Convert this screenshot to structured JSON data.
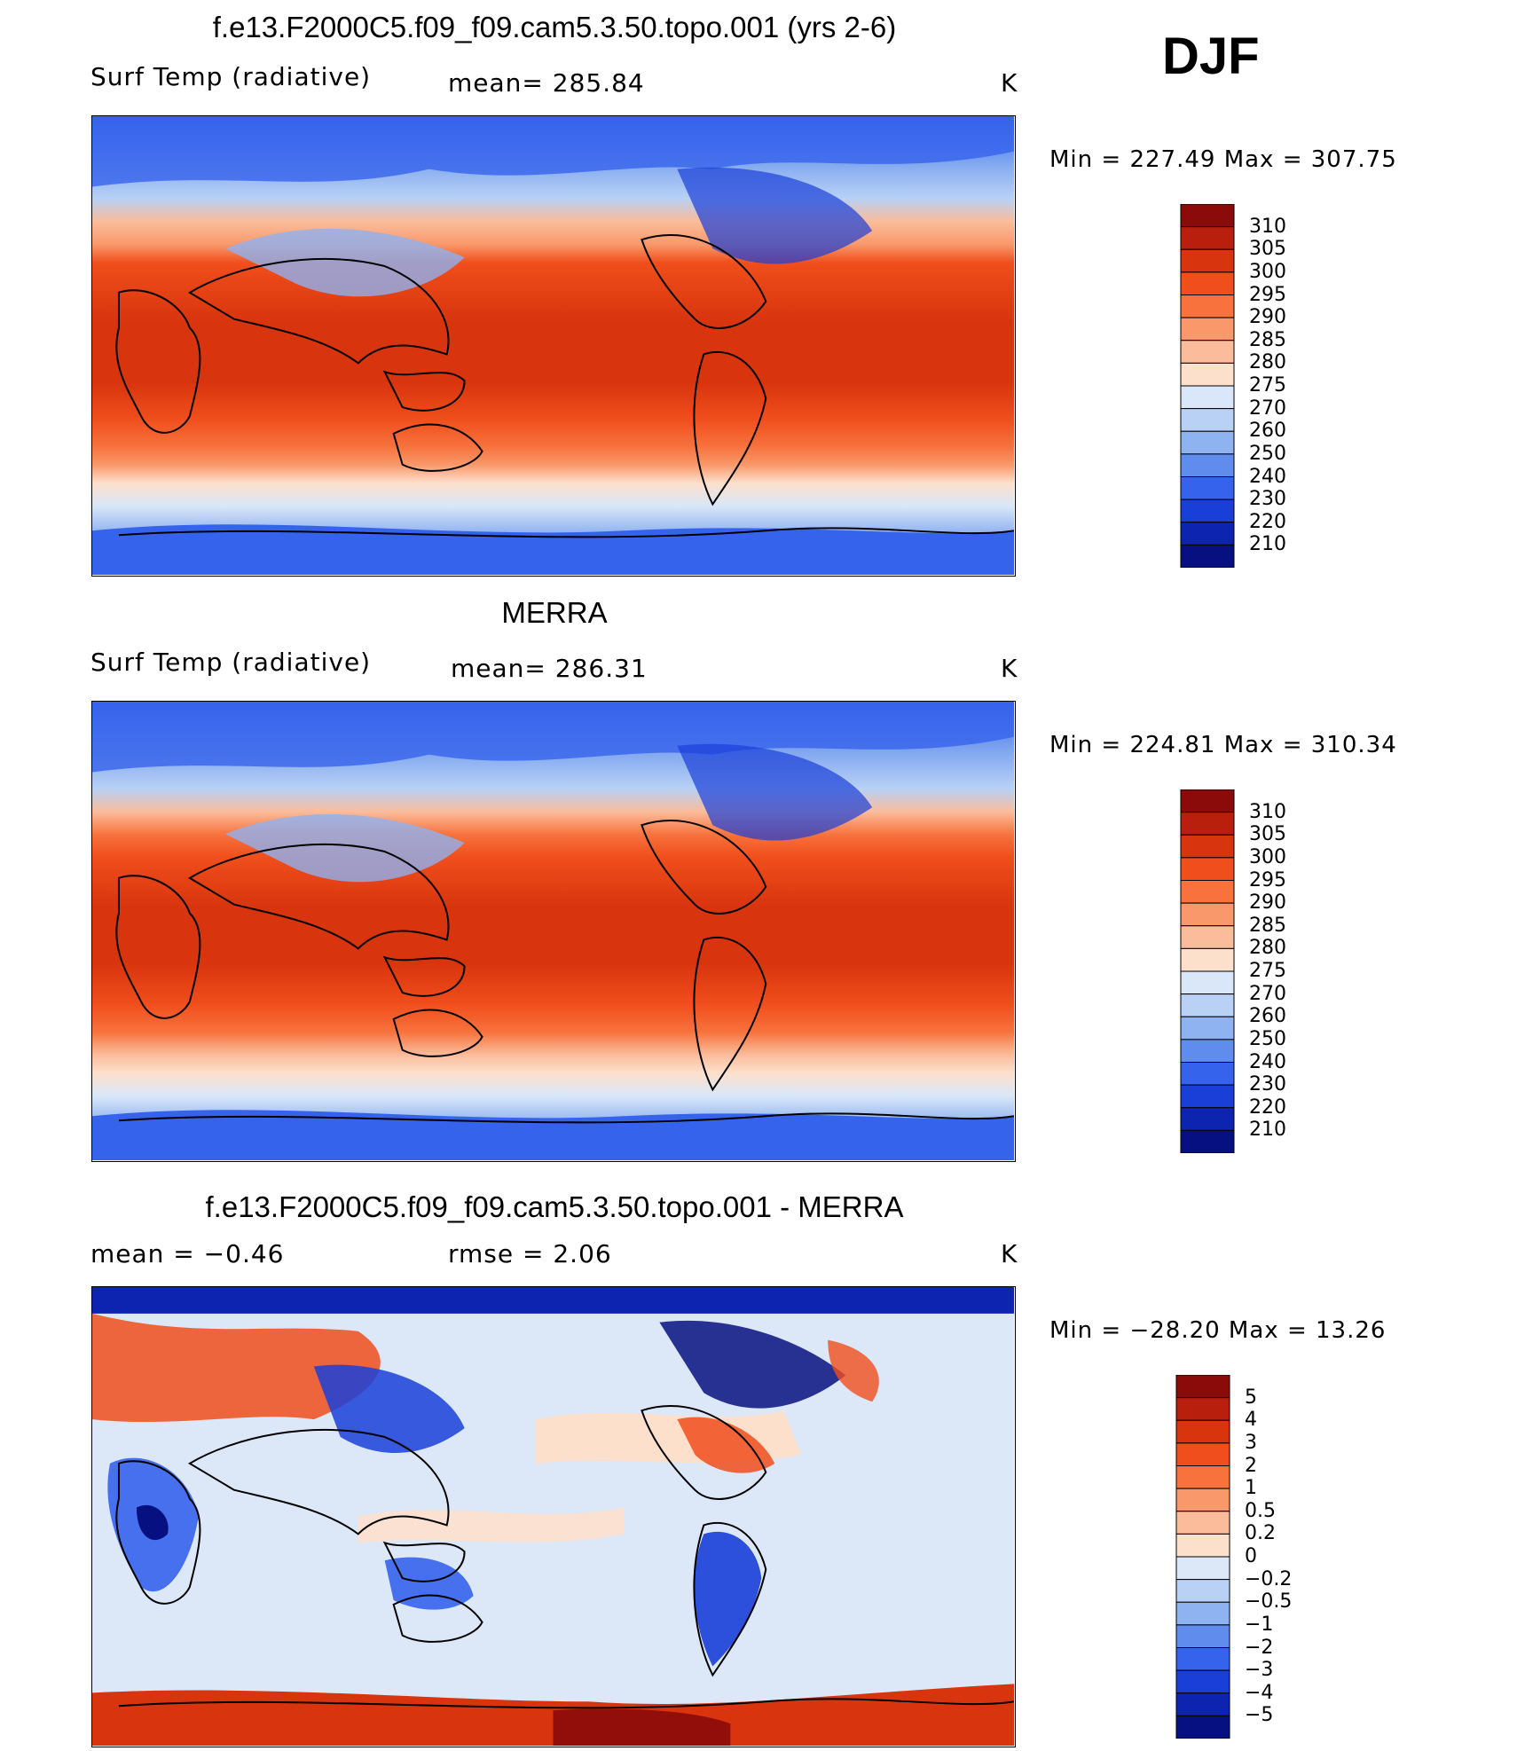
{
  "season": "DJF",
  "units": "K",
  "panels": [
    {
      "id": "model",
      "title": "f.e13.F2000C5.f09_f09.cam5.3.50.topo.001 (yrs 2-6)",
      "left_label": "Surf Temp (radiative)",
      "center_label": "mean= 285.84",
      "right_label": "K",
      "minmax": "Min = 227.49 Max = 307.75",
      "colorbar_labels": [
        "310",
        "305",
        "300",
        "295",
        "290",
        "285",
        "280",
        "275",
        "270",
        "260",
        "250",
        "240",
        "230",
        "220",
        "210"
      ],
      "colorbar_colors": [
        "#8b0a0a",
        "#b81f0c",
        "#d8340e",
        "#f04e1c",
        "#f7723d",
        "#f9986a",
        "#fbbc9b",
        "#fde0cc",
        "#d9e7f8",
        "#b8d1f5",
        "#8fb2f1",
        "#5f8ced",
        "#3663ec",
        "#1a3fd8",
        "#0c24b0",
        "#061080"
      ]
    },
    {
      "id": "obs",
      "title": "MERRA",
      "left_label": "Surf Temp (radiative)",
      "center_label": "mean= 286.31",
      "right_label": "K",
      "minmax": "Min = 224.81 Max = 310.34",
      "colorbar_labels": [
        "310",
        "305",
        "300",
        "295",
        "290",
        "285",
        "280",
        "275",
        "270",
        "260",
        "250",
        "240",
        "230",
        "220",
        "210"
      ],
      "colorbar_colors": [
        "#8b0a0a",
        "#b81f0c",
        "#d8340e",
        "#f04e1c",
        "#f7723d",
        "#f9986a",
        "#fbbc9b",
        "#fde0cc",
        "#d9e7f8",
        "#b8d1f5",
        "#8fb2f1",
        "#5f8ced",
        "#3663ec",
        "#1a3fd8",
        "#0c24b0",
        "#061080"
      ]
    },
    {
      "id": "diff",
      "title": "f.e13.F2000C5.f09_f09.cam5.3.50.topo.001 - MERRA",
      "left_label": "mean =   −0.46",
      "center_label": "rmse =    2.06",
      "right_label": "K",
      "minmax": "Min = −28.20 Max =  13.26",
      "colorbar_labels": [
        "5",
        "4",
        "3",
        "2",
        "1",
        "0.5",
        "0.2",
        "0",
        "−0.2",
        "−0.5",
        "−1",
        "−2",
        "−3",
        "−4",
        "−5"
      ],
      "colorbar_colors": [
        "#8b0a0a",
        "#b81f0c",
        "#d8340e",
        "#f04e1c",
        "#f7723d",
        "#f9986a",
        "#fbbc9b",
        "#fde0cc",
        "#dce8f8",
        "#b8d1f5",
        "#8fb2f1",
        "#5f8ced",
        "#3663ec",
        "#1a3fd8",
        "#0c24b0",
        "#061080"
      ]
    }
  ]
}
